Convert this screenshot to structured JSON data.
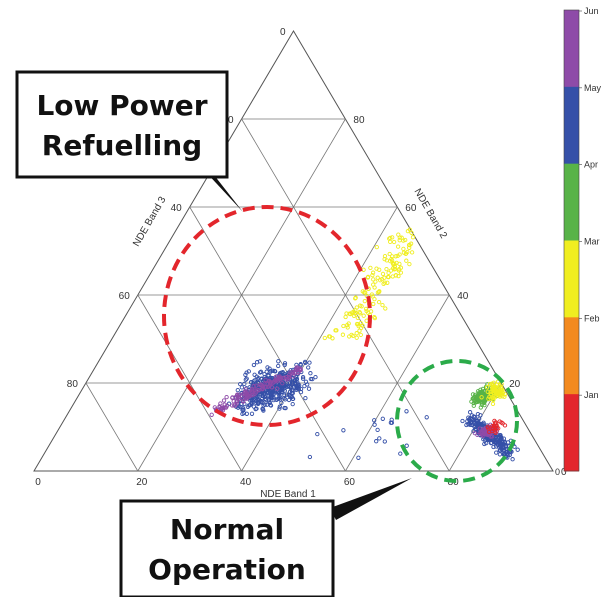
{
  "chart_data": {
    "type": "scatter",
    "subtype": "ternary",
    "axes": {
      "a": {
        "label": "NDE Band 1",
        "ticks": [
          "0",
          "20",
          "40",
          "60",
          "80"
        ]
      },
      "b": {
        "label": "NDE Band 2",
        "ticks": [
          "0",
          "20",
          "40",
          "60",
          "80"
        ]
      },
      "c": {
        "label": "NDE Band 3",
        "ticks": [
          "0",
          "20",
          "40",
          "60",
          "80"
        ]
      }
    },
    "grid": true,
    "colorbar": {
      "position": "right",
      "labels": [
        "Jun",
        "May",
        "Apr",
        "Mar",
        "Feb",
        "Jan"
      ],
      "colors": [
        "#8e4ba8",
        "#3550a8",
        "#58b348",
        "#f0ee20",
        "#f38a1f",
        "#e3262c"
      ]
    },
    "clusters": [
      {
        "name": "Low Power Refuelling",
        "a_range": [
          25,
          55
        ],
        "b_range": [
          5,
          30
        ],
        "months": [
          "Mar",
          "May",
          "Jun"
        ]
      },
      {
        "name": "Normal Operation",
        "a_range": [
          70,
          90
        ],
        "b_range": [
          12,
          22
        ],
        "months": [
          "Apr",
          "Mar",
          "May",
          "Jun",
          "Jan"
        ]
      }
    ],
    "annotations": [
      {
        "text": "Low Power Refuelling",
        "style": "callout",
        "circle_color": "#e3262c",
        "circle_style": "dashed"
      },
      {
        "text": "Normal Operation",
        "style": "callout",
        "circle_color": "#2bab4a",
        "circle_style": "dashed"
      }
    ]
  },
  "callouts": {
    "low_power": {
      "line1": "Low Power",
      "line2": "Refuelling"
    },
    "normal": {
      "line1": "Normal",
      "line2": "Operation"
    }
  }
}
